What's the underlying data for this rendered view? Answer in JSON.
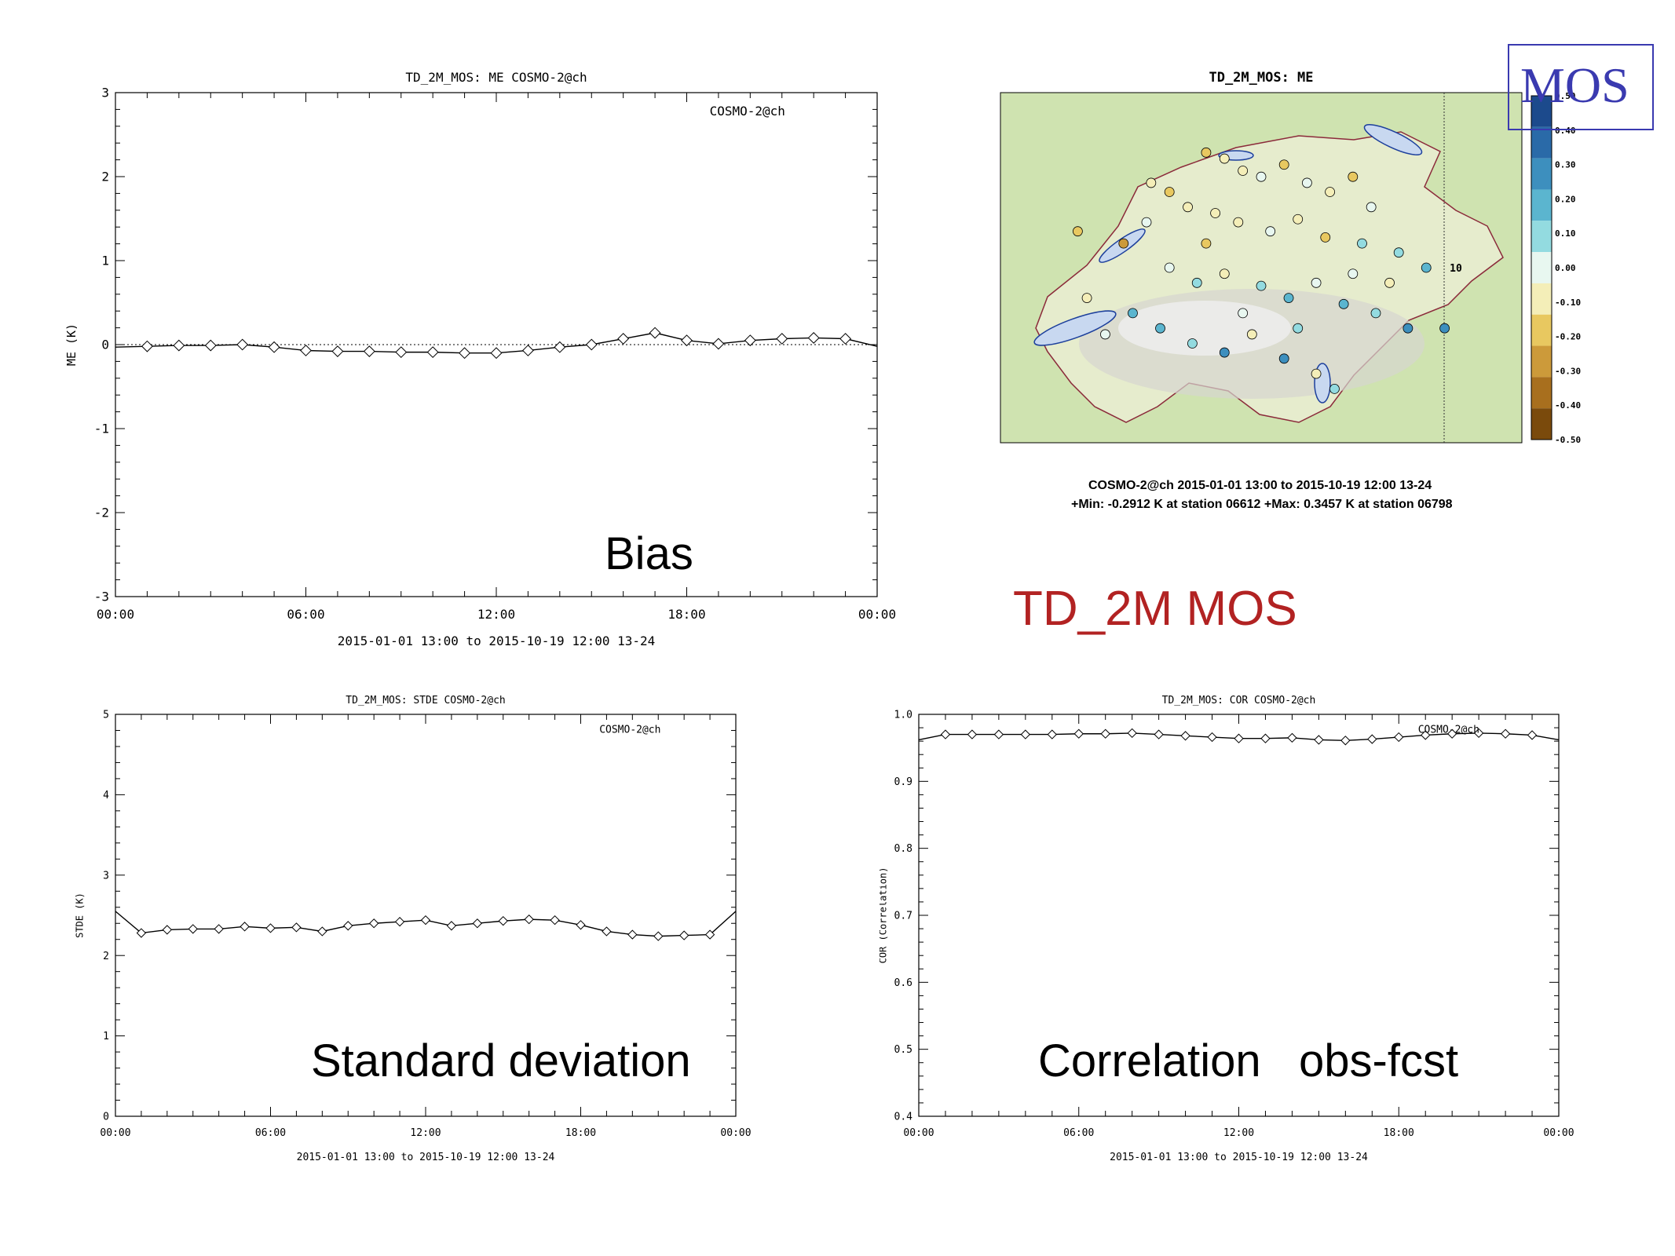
{
  "slide": {
    "title": "TD_2M MOS",
    "badge": "MOS"
  },
  "colors": {
    "title": "#b22222",
    "badge": "#3a3ab0",
    "plot_line": "#000000"
  },
  "chart_data": [
    {
      "id": "bias",
      "type": "line",
      "title": "TD_2M_MOS: ME COSMO-2@ch",
      "legend": "COSMO-2@ch",
      "legend_position": "top-right",
      "overlay_label": "Bias",
      "ylabel": "ME (K)",
      "xlabel": "2015-01-01 13:00 to 2015-10-19 12:00 13-24",
      "xlim": [
        0,
        24
      ],
      "ylim": [
        -3,
        3
      ],
      "yticks": [
        -3,
        -2,
        -1,
        0,
        1,
        2,
        3
      ],
      "yticklabels": [
        "-3",
        "-2",
        "-1",
        "0",
        "1",
        "2",
        "3"
      ],
      "xticks": [
        0,
        6,
        12,
        18,
        24
      ],
      "xticklabels": [
        "00:00",
        "06:00",
        "12:00",
        "18:00",
        "00:00"
      ],
      "zero_line": true,
      "x": [
        1,
        2,
        3,
        4,
        5,
        6,
        7,
        8,
        9,
        10,
        11,
        12,
        13,
        14,
        15,
        16,
        17,
        18,
        19,
        20,
        21,
        22,
        23
      ],
      "y": [
        -0.02,
        -0.01,
        -0.01,
        0.0,
        -0.03,
        -0.07,
        -0.08,
        -0.08,
        -0.09,
        -0.09,
        -0.1,
        -0.1,
        -0.07,
        -0.03,
        0.0,
        0.07,
        0.14,
        0.05,
        0.01,
        0.05,
        0.07,
        0.08,
        0.07
      ],
      "y_at_0": -0.03,
      "y_at_24": -0.02
    },
    {
      "id": "stde",
      "type": "line",
      "title": "TD_2M_MOS: STDE COSMO-2@ch",
      "legend": "COSMO-2@ch",
      "legend_position": "top-right",
      "overlay_label": "Standard deviation",
      "ylabel": "STDE (K)",
      "xlabel": "2015-01-01 13:00 to 2015-10-19 12:00 13-24",
      "xlim": [
        0,
        24
      ],
      "ylim": [
        0,
        5
      ],
      "yticks": [
        0,
        1,
        2,
        3,
        4,
        5
      ],
      "yticklabels": [
        "0",
        "1",
        "2",
        "3",
        "4",
        "5"
      ],
      "xticks": [
        0,
        6,
        12,
        18,
        24
      ],
      "xticklabels": [
        "00:00",
        "06:00",
        "12:00",
        "18:00",
        "00:00"
      ],
      "zero_line": false,
      "x": [
        1,
        2,
        3,
        4,
        5,
        6,
        7,
        8,
        9,
        10,
        11,
        12,
        13,
        14,
        15,
        16,
        17,
        18,
        19,
        20,
        21,
        22,
        23
      ],
      "y": [
        2.28,
        2.32,
        2.33,
        2.33,
        2.36,
        2.34,
        2.35,
        2.3,
        2.37,
        2.4,
        2.42,
        2.44,
        2.37,
        2.4,
        2.43,
        2.45,
        2.44,
        2.38,
        2.3,
        2.26,
        2.24,
        2.25,
        2.26
      ],
      "y_at_0": 2.55,
      "y_at_24": 2.55
    },
    {
      "id": "cor",
      "type": "line",
      "title": "TD_2M_MOS: COR COSMO-2@ch",
      "legend": "COSMO-2@ch",
      "legend_position": "top-right",
      "overlay_label": "Correlation   obs-fcst",
      "ylabel": "COR (Correlation)",
      "xlabel": "2015-01-01 13:00 to 2015-10-19 12:00 13-24",
      "xlim": [
        0,
        24
      ],
      "ylim": [
        0.4,
        1.0
      ],
      "yticks": [
        0.4,
        0.5,
        0.6,
        0.7,
        0.8,
        0.9,
        1.0
      ],
      "yticklabels": [
        "0.4",
        "0.5",
        "0.6",
        "0.7",
        "0.8",
        "0.9",
        "1.0"
      ],
      "xticks": [
        0,
        6,
        12,
        18,
        24
      ],
      "xticklabels": [
        "00:00",
        "06:00",
        "12:00",
        "18:00",
        "00:00"
      ],
      "zero_line": false,
      "x": [
        1,
        2,
        3,
        4,
        5,
        6,
        7,
        8,
        9,
        10,
        11,
        12,
        13,
        14,
        15,
        16,
        17,
        18,
        19,
        20,
        21,
        22,
        23
      ],
      "y": [
        0.97,
        0.97,
        0.97,
        0.97,
        0.97,
        0.971,
        0.971,
        0.972,
        0.97,
        0.968,
        0.966,
        0.964,
        0.964,
        0.965,
        0.962,
        0.961,
        0.963,
        0.966,
        0.969,
        0.971,
        0.972,
        0.971,
        0.969
      ],
      "y_at_0": 0.962,
      "y_at_24": 0.962
    },
    {
      "id": "map",
      "type": "heatmap",
      "title": "TD_2M_MOS: ME",
      "caption_line1": "COSMO-2@ch 2015-01-01 13:00 to 2015-10-19 12:00 13-24",
      "caption_line2": "+Min: -0.2912 K at station 06612 +Max: 0.3457 K at station 06798",
      "map_marker": "10",
      "colorbar_ticks": [
        0.5,
        0.4,
        0.3,
        0.2,
        0.1,
        0.0,
        -0.1,
        -0.2,
        -0.3,
        -0.4,
        -0.5
      ],
      "colorbar_labels": [
        "0.50",
        "0.40",
        "0.30",
        "0.20",
        "0.10",
        "0.00",
        "-0.10",
        "-0.20",
        "-0.30",
        "-0.40",
        "-0.50"
      ],
      "colorbar_colors": [
        "#1c4a8c",
        "#2a6aa8",
        "#3d8fbe",
        "#5bb5cf",
        "#93dbe0",
        "#e8f7f0",
        "#f4eeb8",
        "#e8c860",
        "#cc9a3a",
        "#a86f1e",
        "#7a4a0c"
      ],
      "stations": [
        {
          "lon": 0.38,
          "lat": 0.88,
          "v": -0.2
        },
        {
          "lon": 0.42,
          "lat": 0.86,
          "v": -0.15
        },
        {
          "lon": 0.46,
          "lat": 0.82,
          "v": -0.1
        },
        {
          "lon": 0.5,
          "lat": 0.8,
          "v": -0.05
        },
        {
          "lon": 0.55,
          "lat": 0.84,
          "v": -0.2
        },
        {
          "lon": 0.6,
          "lat": 0.78,
          "v": 0.02
        },
        {
          "lon": 0.65,
          "lat": 0.75,
          "v": -0.12
        },
        {
          "lon": 0.7,
          "lat": 0.8,
          "v": -0.18
        },
        {
          "lon": 0.3,
          "lat": 0.75,
          "v": -0.22
        },
        {
          "lon": 0.34,
          "lat": 0.7,
          "v": -0.1
        },
        {
          "lon": 0.25,
          "lat": 0.65,
          "v": 0.0
        },
        {
          "lon": 0.2,
          "lat": 0.58,
          "v": -0.28
        },
        {
          "lon": 0.4,
          "lat": 0.68,
          "v": -0.06
        },
        {
          "lon": 0.45,
          "lat": 0.65,
          "v": -0.14
        },
        {
          "lon": 0.52,
          "lat": 0.62,
          "v": 0.04
        },
        {
          "lon": 0.58,
          "lat": 0.66,
          "v": -0.08
        },
        {
          "lon": 0.64,
          "lat": 0.6,
          "v": -0.16
        },
        {
          "lon": 0.72,
          "lat": 0.58,
          "v": 0.08
        },
        {
          "lon": 0.8,
          "lat": 0.55,
          "v": 0.12
        },
        {
          "lon": 0.86,
          "lat": 0.5,
          "v": 0.2
        },
        {
          "lon": 0.3,
          "lat": 0.5,
          "v": -0.04
        },
        {
          "lon": 0.36,
          "lat": 0.45,
          "v": 0.06
        },
        {
          "lon": 0.42,
          "lat": 0.48,
          "v": -0.1
        },
        {
          "lon": 0.5,
          "lat": 0.44,
          "v": 0.1
        },
        {
          "lon": 0.56,
          "lat": 0.4,
          "v": 0.16
        },
        {
          "lon": 0.62,
          "lat": 0.45,
          "v": -0.02
        },
        {
          "lon": 0.68,
          "lat": 0.38,
          "v": 0.22
        },
        {
          "lon": 0.75,
          "lat": 0.35,
          "v": 0.14
        },
        {
          "lon": 0.82,
          "lat": 0.3,
          "v": 0.3
        },
        {
          "lon": 0.22,
          "lat": 0.35,
          "v": 0.18
        },
        {
          "lon": 0.28,
          "lat": 0.3,
          "v": 0.24
        },
        {
          "lon": 0.35,
          "lat": 0.25,
          "v": 0.1
        },
        {
          "lon": 0.42,
          "lat": 0.22,
          "v": 0.28
        },
        {
          "lon": 0.48,
          "lat": 0.28,
          "v": -0.06
        },
        {
          "lon": 0.55,
          "lat": 0.2,
          "v": 0.34
        },
        {
          "lon": 0.62,
          "lat": 0.15,
          "v": -0.12
        },
        {
          "lon": 0.66,
          "lat": 0.1,
          "v": 0.06
        },
        {
          "lon": 0.16,
          "lat": 0.28,
          "v": 0.0
        },
        {
          "lon": 0.12,
          "lat": 0.4,
          "v": -0.08
        },
        {
          "lon": 0.1,
          "lat": 0.62,
          "v": -0.24
        },
        {
          "lon": 0.26,
          "lat": 0.78,
          "v": -0.12
        },
        {
          "lon": 0.74,
          "lat": 0.7,
          "v": -0.04
        },
        {
          "lon": 0.9,
          "lat": 0.3,
          "v": 0.26
        },
        {
          "lon": 0.78,
          "lat": 0.45,
          "v": -0.1
        },
        {
          "lon": 0.46,
          "lat": 0.35,
          "v": 0.04
        },
        {
          "lon": 0.58,
          "lat": 0.3,
          "v": 0.12
        },
        {
          "lon": 0.7,
          "lat": 0.48,
          "v": 0.0
        },
        {
          "lon": 0.38,
          "lat": 0.58,
          "v": -0.18
        }
      ]
    }
  ]
}
